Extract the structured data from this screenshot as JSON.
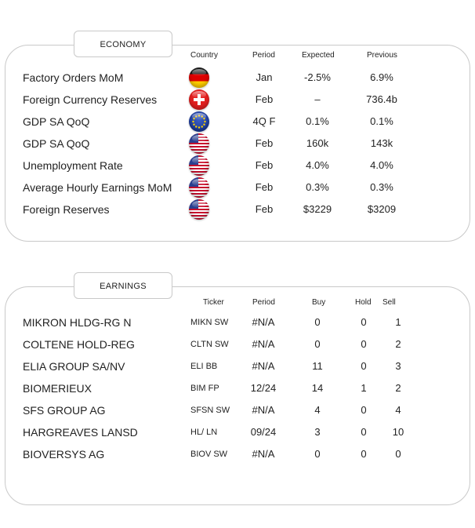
{
  "economy": {
    "title": "ECONOMY",
    "headers": {
      "country": "Country",
      "period": "Period",
      "expected": "Expected",
      "previous": "Previous"
    },
    "rows": [
      {
        "name": "Factory Orders MoM",
        "flag": "germany-flag-icon",
        "period": "Jan",
        "expected": "-2.5%",
        "previous": "6.9%"
      },
      {
        "name": "Foreign Currency Reserves",
        "flag": "switzerland-flag-icon",
        "period": "Feb",
        "expected": "–",
        "previous": "736.4b"
      },
      {
        "name": "GDP SA QoQ",
        "flag": "eu-flag-icon",
        "period": "4Q F",
        "expected": "0.1%",
        "previous": "0.1%"
      },
      {
        "name": "GDP SA QoQ",
        "flag": "us-flag-icon",
        "period": "Feb",
        "expected": "160k",
        "previous": "143k"
      },
      {
        "name": "Unemployment Rate",
        "flag": "us-flag-icon",
        "period": "Feb",
        "expected": "4.0%",
        "previous": "4.0%"
      },
      {
        "name": "Average Hourly Earnings MoM",
        "flag": "us-flag-icon",
        "period": "Feb",
        "expected": "0.3%",
        "previous": "0.3%"
      },
      {
        "name": "Foreign Reserves",
        "flag": "us-flag-icon",
        "period": "Feb",
        "expected": "$3229",
        "previous": "$3209"
      }
    ]
  },
  "earnings": {
    "title": "EARNINGS",
    "headers": {
      "ticker": "Ticker",
      "period": "Period",
      "buy": "Buy",
      "hold": "Hold",
      "sell": "Sell"
    },
    "rows": [
      {
        "name": "MIKRON HLDG-RG N",
        "ticker": "MIKN SW",
        "period": "#N/A",
        "buy": "0",
        "hold": "0",
        "sell": "1"
      },
      {
        "name": "COLTENE HOLD-REG",
        "ticker": "CLTN SW",
        "period": "#N/A",
        "buy": "0",
        "hold": "0",
        "sell": "2"
      },
      {
        "name": "ELIA GROUP SA/NV",
        "ticker": "ELI BB",
        "period": "#N/A",
        "buy": "11",
        "hold": "0",
        "sell": "3"
      },
      {
        "name": "BIOMERIEUX",
        "ticker": "BIM FP",
        "period": "12/24",
        "buy": "14",
        "hold": "1",
        "sell": "2"
      },
      {
        "name": "SFS GROUP AG",
        "ticker": "SFSN SW",
        "period": "#N/A",
        "buy": "4",
        "hold": "0",
        "sell": "4"
      },
      {
        "name": "HARGREAVES LANSD",
        "ticker": "HL/ LN",
        "period": "09/24",
        "buy": "3",
        "hold": "0",
        "sell": "10"
      },
      {
        "name": "BIOVERSYS AG",
        "ticker": "BIOV SW",
        "period": "#N/A",
        "buy": "0",
        "hold": "0",
        "sell": "0"
      }
    ]
  }
}
